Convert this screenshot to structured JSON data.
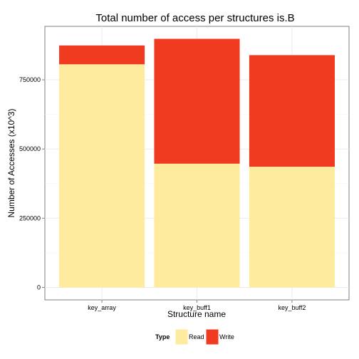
{
  "chart_data": {
    "type": "bar",
    "stacked": true,
    "title": "Total number of access per structures is.B",
    "xlabel": "Structure name",
    "ylabel": "Number of Accesses (x10^3)",
    "categories": [
      "key_array",
      "key_buff1",
      "key_buff2"
    ],
    "series": [
      {
        "name": "Read",
        "color": "#FEEB9E",
        "values": [
          806000,
          447000,
          436000
        ]
      },
      {
        "name": "Write",
        "color": "#F03B20",
        "values": [
          68000,
          451000,
          403000
        ]
      }
    ],
    "yticks": [
      0,
      250000,
      500000,
      750000
    ],
    "ytick_labels": [
      "0",
      "250000",
      "500000",
      "750000"
    ],
    "ylim": [
      -44900,
      943000
    ],
    "grid": true,
    "legend": {
      "title": "Type",
      "position": "bottom"
    }
  }
}
